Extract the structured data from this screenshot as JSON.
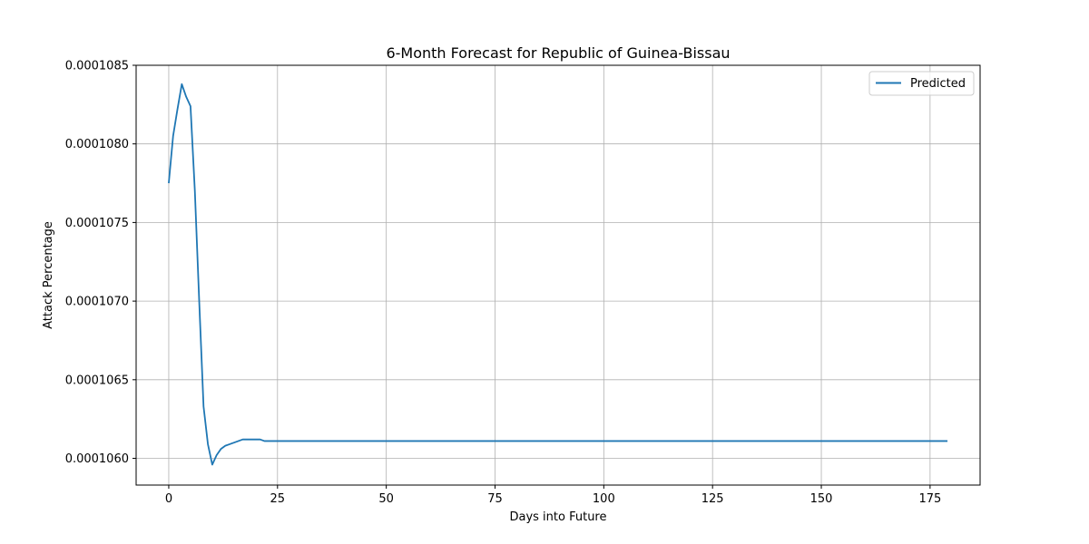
{
  "chart_data": {
    "type": "line",
    "title": "6-Month Forecast for Republic of Guinea-Bissau",
    "xlabel": "Days into Future",
    "ylabel": "Attack Percentage",
    "xlim": [
      -7.5,
      186.5
    ],
    "ylim": [
      0.00010583,
      0.0001085
    ],
    "x_ticks": [
      0,
      25,
      50,
      75,
      100,
      125,
      150,
      175
    ],
    "x_tick_labels": [
      "0",
      "25",
      "50",
      "75",
      "100",
      "125",
      "150",
      "175"
    ],
    "y_ticks": [
      0.000106,
      0.0001065,
      0.000107,
      0.0001075,
      0.000108,
      0.0001085
    ],
    "y_tick_labels": [
      "0.0001060",
      "0.0001065",
      "0.0001070",
      "0.0001075",
      "0.0001080",
      "0.0001085"
    ],
    "grid": true,
    "legend_position": "top-right",
    "colors": {
      "series": "#1f77b4",
      "grid": "#b0b0b0"
    },
    "series": [
      {
        "name": "Predicted",
        "x": [
          0,
          1,
          2,
          3,
          4,
          5,
          6,
          7,
          8,
          9,
          10,
          11,
          12,
          13,
          14,
          15,
          16,
          17,
          18,
          19,
          20,
          21,
          22,
          23,
          24,
          25,
          30,
          40,
          50,
          60,
          70,
          80,
          90,
          100,
          110,
          120,
          130,
          140,
          150,
          160,
          170,
          179
        ],
        "values": [
          0.00010775,
          0.00010805,
          0.00010822,
          0.00010838,
          0.0001083,
          0.00010824,
          0.0001077,
          0.000107,
          0.00010633,
          0.00010609,
          0.00010596,
          0.00010602,
          0.00010606,
          0.00010608,
          0.00010609,
          0.0001061,
          0.00010611,
          0.00010612,
          0.00010612,
          0.00010612,
          0.00010612,
          0.00010612,
          0.00010611,
          0.00010611,
          0.00010611,
          0.00010611,
          0.00010611,
          0.00010611,
          0.00010611,
          0.00010611,
          0.00010611,
          0.00010611,
          0.00010611,
          0.00010611,
          0.00010611,
          0.00010611,
          0.00010611,
          0.00010611,
          0.00010611,
          0.00010611,
          0.00010611,
          0.00010611
        ]
      }
    ]
  }
}
